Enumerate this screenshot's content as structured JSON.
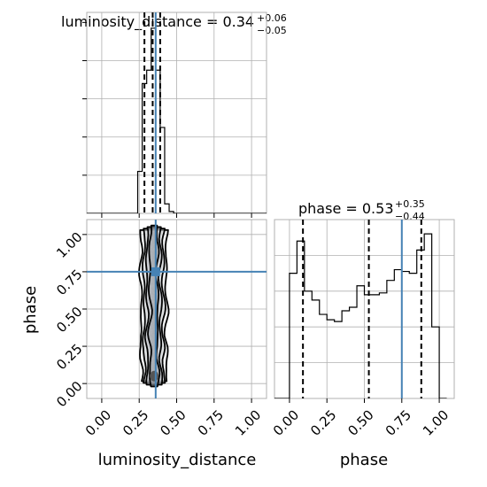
{
  "chart_data": [
    {
      "panel": "luminosity_distance-marginal",
      "type": "histogram",
      "title": {
        "param": "luminosity_distance",
        "median": "0.34",
        "plus": "+0.06",
        "minus": "−0.05"
      },
      "xlim": [
        -0.1,
        1.1
      ],
      "bin_edges": [
        0.2,
        0.24,
        0.27,
        0.3,
        0.33,
        0.36,
        0.39,
        0.42,
        0.45,
        0.48,
        0.52
      ],
      "counts": [
        0,
        0.22,
        0.68,
        0.75,
        0.97,
        0.75,
        0.45,
        0.05,
        0.01,
        0
      ],
      "quantile_lines": [
        0.285,
        0.34,
        0.39
      ],
      "truth": 0.36,
      "grid": true
    },
    {
      "panel": "phase-marginal",
      "type": "histogram",
      "title": {
        "param": "phase",
        "median": "0.53",
        "plus": "+0.35",
        "minus": "−0.44"
      },
      "xlim": [
        -0.1,
        1.1
      ],
      "xticks": [
        "0.00",
        "0.25",
        "0.50",
        "0.75",
        "1.00"
      ],
      "xlabel": "phase",
      "bin_edges": [
        -0.05,
        0.0,
        0.05,
        0.1,
        0.15,
        0.2,
        0.25,
        0.3,
        0.35,
        0.4,
        0.45,
        0.5,
        0.55,
        0.6,
        0.65,
        0.7,
        0.75,
        0.8,
        0.85,
        0.9,
        0.95,
        1.0,
        1.05
      ],
      "counts": [
        0,
        0.7,
        0.88,
        0.6,
        0.55,
        0.47,
        0.44,
        0.43,
        0.49,
        0.51,
        0.63,
        0.58,
        0.58,
        0.59,
        0.66,
        0.72,
        0.71,
        0.7,
        0.83,
        0.92,
        0.4,
        0
      ],
      "quantile_lines": [
        0.09,
        0.53,
        0.88
      ],
      "truth": 0.75,
      "ylim": [
        0,
        1.0
      ],
      "grid": true
    },
    {
      "panel": "luminosity_distance-vs-phase",
      "type": "scatter-contour",
      "xlabel": "luminosity_distance",
      "ylabel": "phase",
      "xlim": [
        -0.1,
        1.1
      ],
      "ylim": [
        -0.1,
        1.1
      ],
      "xticks": [
        "0.00",
        "0.25",
        "0.50",
        "0.75",
        "1.00"
      ],
      "yticks": [
        "0.00",
        "0.25",
        "0.50",
        "0.75",
        "1.00"
      ],
      "truth": {
        "x": 0.36,
        "y": 0.75
      },
      "ridge": {
        "y": [
          0.02,
          0.08,
          0.16,
          0.24,
          0.32,
          0.4,
          0.48,
          0.56,
          0.64,
          0.72,
          0.8,
          0.88,
          0.96,
          1.02
        ],
        "x": [
          0.35,
          0.355,
          0.345,
          0.35,
          0.34,
          0.345,
          0.355,
          0.35,
          0.345,
          0.34,
          0.345,
          0.35,
          0.345,
          0.35
        ]
      },
      "contour_half_widths": [
        0.025,
        0.045,
        0.065,
        0.085
      ],
      "grid": true
    }
  ],
  "colors": {
    "truth": "#4682b4",
    "hist": "#000000",
    "grid": "#b0b0b0",
    "points": "#555555"
  }
}
